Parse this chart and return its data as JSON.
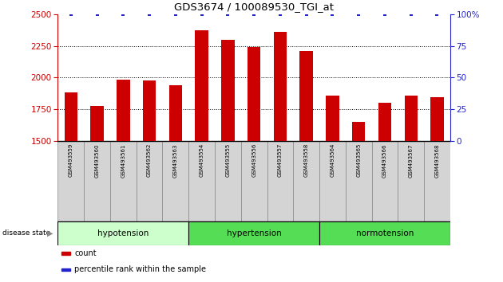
{
  "title": "GDS3674 / 100089530_TGI_at",
  "samples": [
    "GSM493559",
    "GSM493560",
    "GSM493561",
    "GSM493562",
    "GSM493563",
    "GSM493554",
    "GSM493555",
    "GSM493556",
    "GSM493557",
    "GSM493558",
    "GSM493564",
    "GSM493565",
    "GSM493566",
    "GSM493567",
    "GSM493568"
  ],
  "counts": [
    1880,
    1775,
    1985,
    1975,
    1940,
    2375,
    2295,
    2240,
    2360,
    2210,
    1860,
    1650,
    1800,
    1855,
    1845
  ],
  "percentiles": [
    100,
    100,
    100,
    100,
    100,
    100,
    100,
    100,
    100,
    100,
    100,
    100,
    100,
    100,
    100
  ],
  "bar_color": "#cc0000",
  "percentile_color": "#2222cc",
  "ylim_left": [
    1500,
    2500
  ],
  "yticks_left": [
    1500,
    1750,
    2000,
    2250,
    2500
  ],
  "ylim_right": [
    0,
    100
  ],
  "yticks_right": [
    0,
    25,
    50,
    75,
    100
  ],
  "legend_count_label": "count",
  "legend_percentile_label": "percentile rank within the sample",
  "disease_state_label": "disease state",
  "group_info": [
    {
      "label": "hypotension",
      "start": 0,
      "end": 5,
      "color": "#ccffcc"
    },
    {
      "label": "hypertension",
      "start": 5,
      "end": 10,
      "color": "#55dd55"
    },
    {
      "label": "normotension",
      "start": 10,
      "end": 15,
      "color": "#55dd55"
    }
  ],
  "tick_label_color": "#d0d0d0",
  "bar_width": 0.5
}
